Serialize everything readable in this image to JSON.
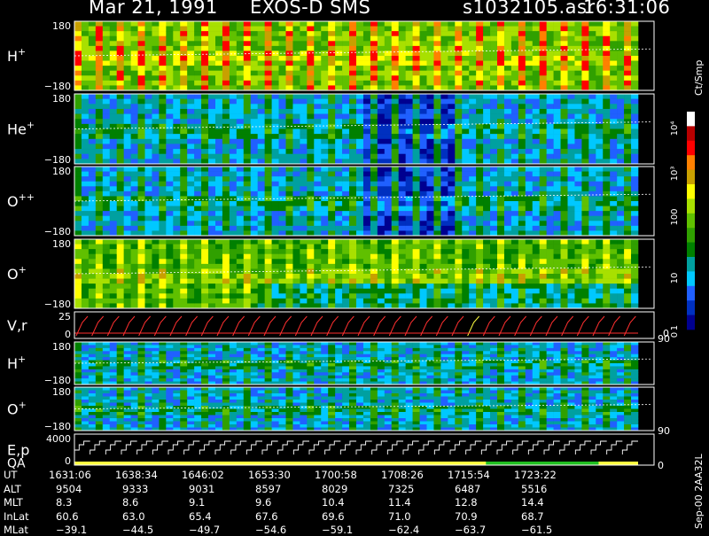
{
  "header": {
    "date": "Mar 21, 1991",
    "instrument": "EXOS-D SMS",
    "file": "s1032105.asr",
    "time": "16:31:06"
  },
  "side_labels": {
    "units": "Ct/Smp",
    "version": "Sep-00 2AA32L"
  },
  "colors": {
    "background": "#000000",
    "ref_line": "#ffffff",
    "velocity_trace": "#ff3030",
    "velocity_highlight": "#ffff40",
    "energy_trace": "#ffffff",
    "qa_good": "#ffff40",
    "qa_green": "#20c020"
  },
  "colorbar": {
    "labels": [
      "10⁴",
      "10³",
      "100",
      "10",
      "1",
      "0"
    ],
    "colors": [
      "#ffffff",
      "#b80000",
      "#ff0000",
      "#ff8000",
      "#c8a000",
      "#ffff00",
      "#a8e000",
      "#60c000",
      "#30a000",
      "#008000",
      "#00a0a0",
      "#00c8ff",
      "#2060ff",
      "#0030c0",
      "#000090"
    ]
  },
  "chart_data": {
    "type": "heatmap",
    "panels": [
      {
        "id": "h-plus",
        "label": "H",
        "sup": "+",
        "ymax": "180",
        "ymin": "−180",
        "intensity": "high"
      },
      {
        "id": "he-plus",
        "label": "He",
        "sup": "+",
        "ymax": "180",
        "ymin": "−180",
        "intensity": "medium"
      },
      {
        "id": "o-plusplus",
        "label": "O",
        "sup": "++",
        "ymax": "180",
        "ymin": "−180",
        "intensity": "medium"
      },
      {
        "id": "o-plus",
        "label": "O",
        "sup": "+",
        "ymax": "180",
        "ymin": "−180",
        "intensity": "medium-high"
      },
      {
        "id": "vr",
        "label": "V,r",
        "ymax": "25",
        "ymin": "0",
        "right_label": "90"
      },
      {
        "id": "h-plus-2",
        "label": "H",
        "sup": "+",
        "ymax": "180",
        "ymin": "−180",
        "intensity": "low"
      },
      {
        "id": "o-plus-2",
        "label": "O",
        "sup": "+",
        "ymax": "180",
        "ymin": "−180",
        "intensity": "low",
        "right_label": "90"
      },
      {
        "id": "ep-qa",
        "label": "E,p",
        "label2": "QA",
        "ymax": "4000",
        "ymin": "0",
        "right_label": "0"
      }
    ],
    "time_axis": {
      "rows": [
        {
          "name": "UT",
          "values": [
            "1631:06",
            "1638:34",
            "1646:02",
            "1653:30",
            "1700:58",
            "1708:26",
            "1715:54",
            "1723:22"
          ]
        },
        {
          "name": "ALT",
          "values": [
            "9504",
            "9333",
            "9031",
            "8597",
            "8029",
            "7325",
            "6487",
            "5516"
          ]
        },
        {
          "name": "MLT",
          "values": [
            "8.3",
            "8.6",
            "9.1",
            "9.6",
            "10.4",
            "11.4",
            "12.8",
            "14.4"
          ]
        },
        {
          "name": "InLat",
          "values": [
            "60.6",
            "63.0",
            "65.4",
            "67.6",
            "69.6",
            "71.0",
            "70.9",
            "68.7"
          ]
        },
        {
          "name": "MLat",
          "values": [
            "−39.1",
            "−44.5",
            "−49.7",
            "−54.6",
            "−59.1",
            "−62.4",
            "−63.7",
            "−61.5"
          ]
        }
      ]
    }
  }
}
